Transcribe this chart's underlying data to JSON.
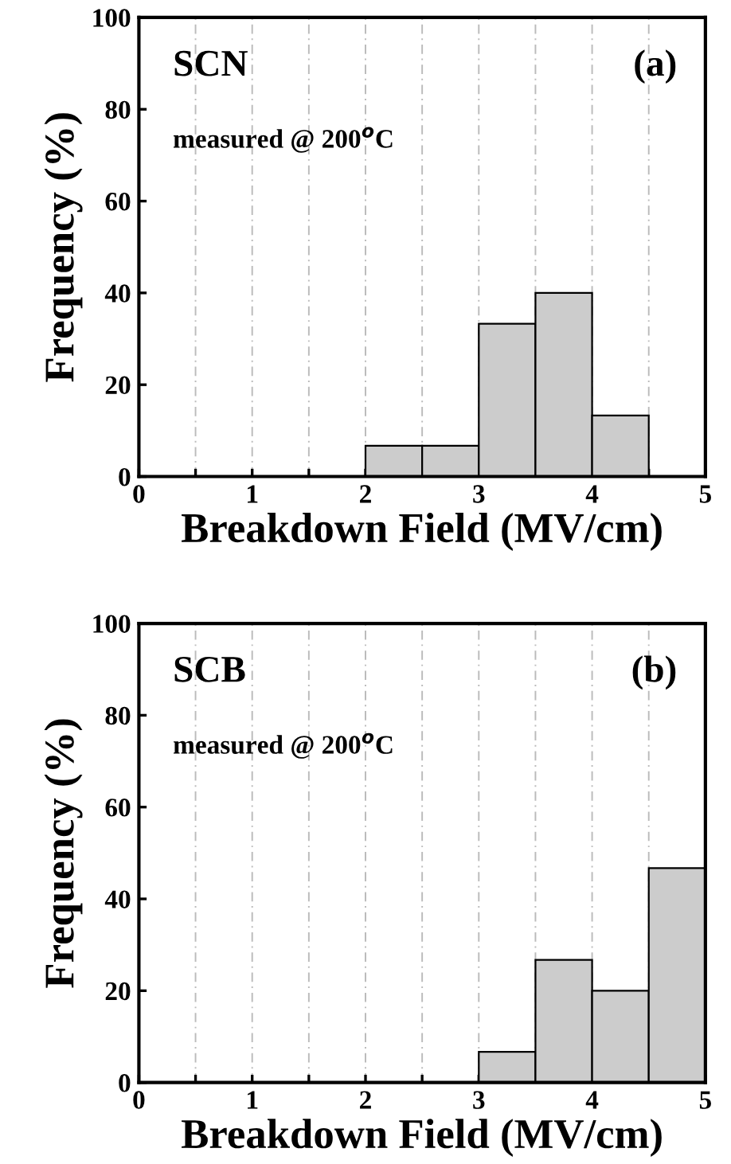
{
  "chart_data": [
    {
      "type": "histogram",
      "title": "SCN",
      "xlabel": "Breakdown Field (MV/cm)",
      "ylabel": "Frequency (%)",
      "bins": [
        0,
        0.5,
        1,
        1.5,
        2,
        2.5,
        3,
        3.5,
        4,
        4.5,
        5
      ],
      "values": [
        0,
        0,
        0,
        0,
        6.7,
        6.7,
        33.3,
        40,
        13.3,
        0
      ],
      "color": "#cccccc",
      "xlim": [
        0,
        5
      ],
      "ylim": [
        0,
        100
      ],
      "xticks": [
        0,
        {
          "value": 0.5,
          "label": null
        },
        1,
        {
          "value": 1.5,
          "label": null
        },
        2,
        {
          "value": 2.5,
          "label": null
        },
        3,
        {
          "value": 3.5,
          "label": null
        },
        4,
        {
          "value": 4.5,
          "label": null
        },
        5
      ],
      "yticks": [
        0,
        20,
        40,
        60,
        80,
        100
      ],
      "grid": "x",
      "annotations": [
        "measured @ 200$^{o}$C",
        "(a)"
      ]
    },
    {
      "type": "histogram",
      "title": "SCB",
      "xlabel": "Breakdown Field (MV/cm)",
      "ylabel": "Frequency (%)",
      "bins": [
        0,
        0.5,
        1,
        1.5,
        2,
        2.5,
        3,
        3.5,
        4,
        4.5,
        5
      ],
      "values": [
        0,
        0,
        0,
        0,
        0,
        0,
        6.7,
        26.7,
        20,
        46.7
      ],
      "color": "#cccccc",
      "xlim": [
        0,
        5
      ],
      "ylim": [
        0,
        100
      ],
      "xticks": [
        0,
        {
          "value": 0.5,
          "label": null
        },
        1,
        {
          "value": 1.5,
          "label": null
        },
        2,
        {
          "value": 2.5,
          "label": null
        },
        3,
        {
          "value": 3.5,
          "label": null
        },
        4,
        {
          "value": 4.5,
          "label": null
        },
        5
      ],
      "yticks": [
        0,
        20,
        40,
        60,
        80,
        100
      ],
      "grid": "x",
      "annotations": [
        "measured @ 200$^{o}$C",
        "(b)"
      ]
    }
  ]
}
